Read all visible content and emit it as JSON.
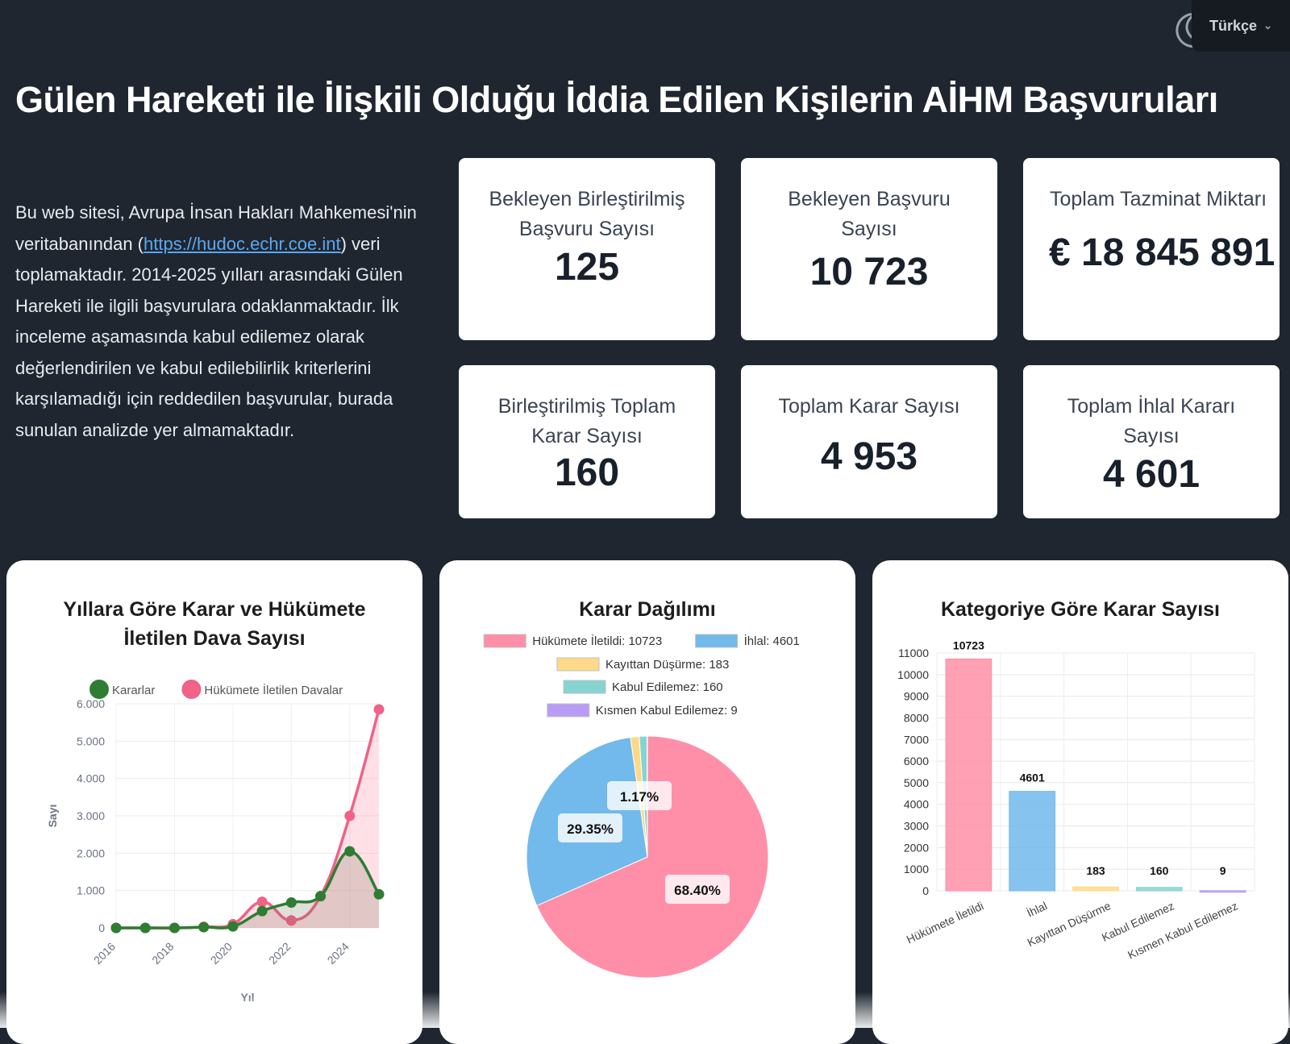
{
  "header": {
    "language_label": "Türkçe",
    "theme_icon": "moon-icon"
  },
  "title": "Gülen Hareketi ile İlişkili Olduğu İddia Edilen Kişilerin AİHM Başvuruları",
  "intro": {
    "before_link": "Bu web sitesi, Avrupa İnsan Hakları Mahkemesi'nin veritabanından (",
    "link_text": "https://hudoc.echr.coe.int",
    "after_link": ") veri toplamaktadır. 2014-2025 yılları arasındaki Gülen Hareketi ile ilgili başvurulara odaklanmaktadır. İlk inceleme aşamasında kabul edilemez olarak değerlendirilen ve kabul edilebilirlik kriterlerini karşılamadığı için reddedilen başvurular, burada sunulan analizde yer almamaktadır."
  },
  "stats": [
    {
      "label": "Bekleyen Birleştirilmiş Başvuru Sayısı",
      "value": "125"
    },
    {
      "label": "Bekleyen Başvuru Sayısı",
      "value": "10 723"
    },
    {
      "label": "Toplam Tazminat Miktarı",
      "value": "€ 18 845 891"
    },
    {
      "label": "Birleştirilmiş Toplam Karar Sayısı",
      "value": "160"
    },
    {
      "label": "Toplam Karar Sayısı",
      "value": "4 953"
    },
    {
      "label": "Toplam İhlal Kararı Sayısı",
      "value": "4 601"
    }
  ],
  "chart_data": [
    {
      "type": "line",
      "title": "Yıllara Göre Karar ve Hükümete İletilen Dava Sayısı",
      "xlabel": "Yıl",
      "ylabel": "Sayı",
      "ylim": [
        0,
        6000
      ],
      "y_ticks": [
        "0",
        "1.000",
        "2.000",
        "3.000",
        "4.000",
        "5.000",
        "6.000"
      ],
      "x_ticks": [
        "2016",
        "2018",
        "2020",
        "2022",
        "2024"
      ],
      "x": [
        2016,
        2017,
        2018,
        2019,
        2020,
        2021,
        2022,
        2023,
        2024,
        2025
      ],
      "legend_position": "top",
      "series": [
        {
          "name": "Kararlar",
          "color": "#2e7d32",
          "values": [
            0,
            0,
            0,
            20,
            40,
            450,
            680,
            850,
            2050,
            900
          ]
        },
        {
          "name": "Hükümete İletilen Davalar",
          "color": "#f06288",
          "values": [
            0,
            0,
            0,
            30,
            100,
            700,
            200,
            850,
            3000,
            5850
          ]
        }
      ],
      "grid": true
    },
    {
      "type": "pie",
      "title": "Karar Dağılımı",
      "legend_position": "top",
      "slices": [
        {
          "label": "Hükümete İletildi",
          "value": 10723,
          "color": "#ff8fa8",
          "legend": "Hükümete İletildi: 10723",
          "pct": "68.40%"
        },
        {
          "label": "İhlal",
          "value": 4601,
          "color": "#72b9ec",
          "legend": "İhlal: 4601",
          "pct": "29.35%"
        },
        {
          "label": "Kayıttan Düşürme",
          "value": 183,
          "color": "#ffd98a",
          "legend": "Kayıttan Düşürme: 183",
          "pct": "1.17%"
        },
        {
          "label": "Kabul Edilemez",
          "value": 160,
          "color": "#86d4d2",
          "legend": "Kabul Edilemez: 160",
          "pct": ""
        },
        {
          "label": "Kısmen Kabul Edilemez",
          "value": 9,
          "color": "#b89cf6",
          "legend": "Kısmen Kabul Edilemez: 9",
          "pct": ""
        }
      ]
    },
    {
      "type": "bar",
      "title": "Kategoriye Göre Karar Sayısı",
      "categories": [
        "Hükümete İletildi",
        "İhlal",
        "Kayıttan Düşürme",
        "Kabul Edilemez",
        "Kısmen Kabul Edilemez"
      ],
      "values": [
        10723,
        4601,
        183,
        160,
        9
      ],
      "value_labels": [
        "10723",
        "4601",
        "183",
        "160",
        "9"
      ],
      "colors": [
        "#ff8fa8",
        "#72b9ec",
        "#ffd98a",
        "#86d4d2",
        "#b89cf6"
      ],
      "ylim": [
        0,
        11000
      ],
      "y_ticks": [
        "0",
        "1000",
        "2000",
        "3000",
        "4000",
        "5000",
        "6000",
        "7000",
        "8000",
        "9000",
        "10000",
        "11000"
      ],
      "grid": true
    }
  ]
}
